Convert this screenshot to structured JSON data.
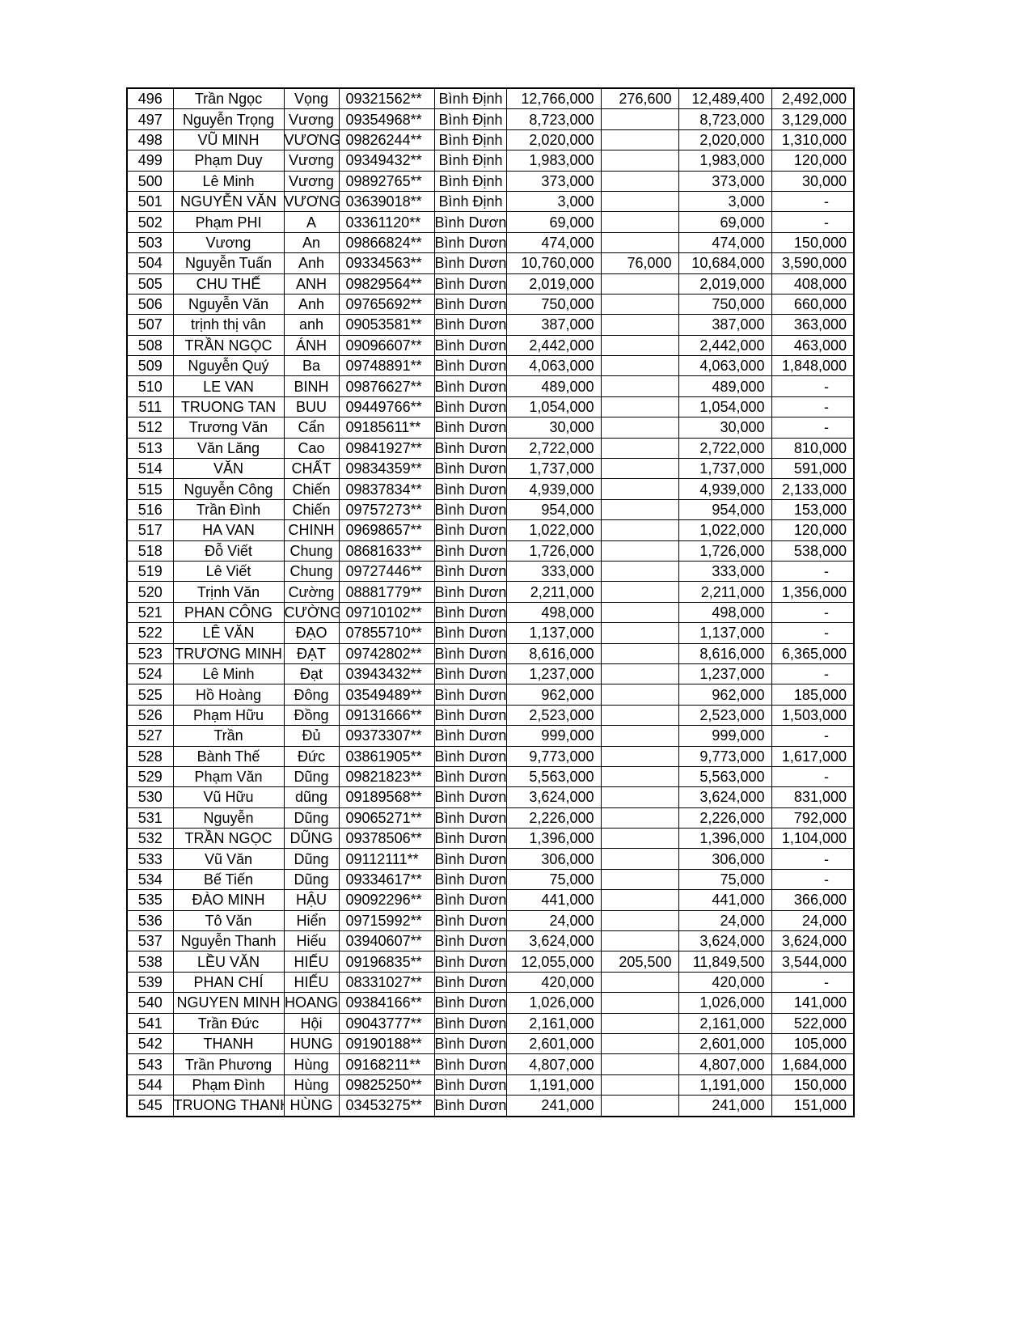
{
  "rows": [
    [
      "496",
      "Trần Ngọc",
      "Vọng",
      "09321562**",
      "Bình Định",
      "12,766,000",
      "276,600",
      "12,489,400",
      "2,492,000"
    ],
    [
      "497",
      "Nguyễn Trọng",
      "Vương",
      "09354968**",
      "Bình Định",
      "8,723,000",
      "",
      "8,723,000",
      "3,129,000"
    ],
    [
      "498",
      "VŨ MINH",
      "VƯƠNG",
      "09826244**",
      "Bình Định",
      "2,020,000",
      "",
      "2,020,000",
      "1,310,000"
    ],
    [
      "499",
      "Phạm Duy",
      "Vương",
      "09349432**",
      "Bình Định",
      "1,983,000",
      "",
      "1,983,000",
      "120,000"
    ],
    [
      "500",
      "Lê Minh",
      "Vương",
      "09892765**",
      "Bình Định",
      "373,000",
      "",
      "373,000",
      "30,000"
    ],
    [
      "501",
      "NGUYỄN VĂN",
      "VƯƠNG",
      "03639018**",
      "Bình Định",
      "3,000",
      "",
      "3,000",
      "-"
    ],
    [
      "502",
      "Phạm  PHI",
      "A",
      "03361120**",
      "Bình Dương",
      "69,000",
      "",
      "69,000",
      "-"
    ],
    [
      "503",
      "Vương",
      "An",
      "09866824**",
      "Bình Dương",
      "474,000",
      "",
      "474,000",
      "150,000"
    ],
    [
      "504",
      "Nguyễn Tuấn",
      "Anh",
      "09334563**",
      "Bình Dương",
      "10,760,000",
      "76,000",
      "10,684,000",
      "3,590,000"
    ],
    [
      "505",
      "CHU THẾ",
      "ANH",
      "09829564**",
      "Bình Dương",
      "2,019,000",
      "",
      "2,019,000",
      "408,000"
    ],
    [
      "506",
      "Nguyễn Văn",
      "Anh",
      "09765692**",
      "Bình Dương",
      "750,000",
      "",
      "750,000",
      "660,000"
    ],
    [
      "507",
      "trịnh thị vân",
      "anh",
      "09053581**",
      "Bình Dương",
      "387,000",
      "",
      "387,000",
      "363,000"
    ],
    [
      "508",
      "TRẦN NGỌC",
      "ÁNH",
      "09096607**",
      "Bình Dương",
      "2,442,000",
      "",
      "2,442,000",
      "463,000"
    ],
    [
      "509",
      "Nguyễn Quý",
      "Ba",
      "09748891**",
      "Bình Dương",
      "4,063,000",
      "",
      "4,063,000",
      "1,848,000"
    ],
    [
      "510",
      "LE VAN",
      "BINH",
      "09876627**",
      "Bình Dương",
      "489,000",
      "",
      "489,000",
      "-"
    ],
    [
      "511",
      "TRUONG TAN",
      "BUU",
      "09449766**",
      "Bình Dương",
      "1,054,000",
      "",
      "1,054,000",
      "-"
    ],
    [
      "512",
      "Trương Văn",
      "Cẩn",
      "09185611**",
      "Bình Dương",
      "30,000",
      "",
      "30,000",
      "-"
    ],
    [
      "513",
      "Văn Lăng",
      "Cao",
      "09841927**",
      "Bình Dương",
      "2,722,000",
      "",
      "2,722,000",
      "810,000"
    ],
    [
      "514",
      "VĂN",
      "CHẤT",
      "09834359**",
      "Bình Dương",
      "1,737,000",
      "",
      "1,737,000",
      "591,000"
    ],
    [
      "515",
      "Nguyễn Công",
      "Chiến",
      "09837834**",
      "Bình Dương",
      "4,939,000",
      "",
      "4,939,000",
      "2,133,000"
    ],
    [
      "516",
      "Trần  Đình",
      "Chiến",
      "09757273**",
      "Bình Dương",
      "954,000",
      "",
      "954,000",
      "153,000"
    ],
    [
      "517",
      "HA VAN",
      "CHINH",
      "09698657**",
      "Bình Dương",
      "1,022,000",
      "",
      "1,022,000",
      "120,000"
    ],
    [
      "518",
      "Đỗ Viết",
      "Chung",
      "08681633**",
      "Bình Dương",
      "1,726,000",
      "",
      "1,726,000",
      "538,000"
    ],
    [
      "519",
      "Lê Viết",
      "Chung",
      "09727446**",
      "Bình Dương",
      "333,000",
      "",
      "333,000",
      "-"
    ],
    [
      "520",
      "Trịnh Văn",
      "Cường",
      "08881779**",
      "Bình Dương",
      "2,211,000",
      "",
      "2,211,000",
      "1,356,000"
    ],
    [
      "521",
      "PHAN CÔNG",
      "CƯỜNG",
      "09710102**",
      "Bình Dương",
      "498,000",
      "",
      "498,000",
      "-"
    ],
    [
      "522",
      "LÊ VĂN",
      "ĐẠO",
      "07855710**",
      "Bình Dương",
      "1,137,000",
      "",
      "1,137,000",
      "-"
    ],
    [
      "523",
      "TRƯƠNG MINH",
      "ĐẠT",
      "09742802**",
      "Bình Dương",
      "8,616,000",
      "",
      "8,616,000",
      "6,365,000"
    ],
    [
      "524",
      "Lê Minh",
      "Đạt",
      "03943432**",
      "Bình Dương",
      "1,237,000",
      "",
      "1,237,000",
      "-"
    ],
    [
      "525",
      "Hồ Hoàng",
      "Đông",
      "03549489**",
      "Bình Dương",
      "962,000",
      "",
      "962,000",
      "185,000"
    ],
    [
      "526",
      "Phạm Hữu",
      "Đồng",
      "09131666**",
      "Bình Dương",
      "2,523,000",
      "",
      "2,523,000",
      "1,503,000"
    ],
    [
      "527",
      "Trần",
      "Đủ",
      "09373307**",
      "Bình Dương",
      "999,000",
      "",
      "999,000",
      "-"
    ],
    [
      "528",
      "Bành Thế",
      "Đức",
      "03861905**",
      "Bình Dương",
      "9,773,000",
      "",
      "9,773,000",
      "1,617,000"
    ],
    [
      "529",
      "Phạm Văn",
      "Dũng",
      "09821823**",
      "Bình Dương",
      "5,563,000",
      "",
      "5,563,000",
      "-"
    ],
    [
      "530",
      "Vũ Hữu",
      "dũng",
      "09189568**",
      "Bình Dương",
      "3,624,000",
      "",
      "3,624,000",
      "831,000"
    ],
    [
      "531",
      "Nguyễn",
      "Dũng",
      "09065271**",
      "Bình Dương",
      "2,226,000",
      "",
      "2,226,000",
      "792,000"
    ],
    [
      "532",
      "TRẦN NGỌC",
      "DŨNG",
      "09378506**",
      "Bình Dương",
      "1,396,000",
      "",
      "1,396,000",
      "1,104,000"
    ],
    [
      "533",
      "Vũ Văn",
      "Dũng",
      "09112111**",
      "Bình Dương",
      "306,000",
      "",
      "306,000",
      "-"
    ],
    [
      "534",
      "Bế Tiến",
      "Dũng",
      "09334617**",
      "Bình Dương",
      "75,000",
      "",
      "75,000",
      "-"
    ],
    [
      "535",
      "ĐÀO MINH",
      "HẬU",
      "09092296**",
      "Bình Dương",
      "441,000",
      "",
      "441,000",
      "366,000"
    ],
    [
      "536",
      "Tô Văn",
      "Hiển",
      "09715992**",
      "Bình Dương",
      "24,000",
      "",
      "24,000",
      "24,000"
    ],
    [
      "537",
      "Nguyễn Thanh",
      "Hiếu",
      "03940607**",
      "Bình Dương",
      "3,624,000",
      "",
      "3,624,000",
      "3,624,000"
    ],
    [
      "538",
      "LỀU VĂN",
      "HIẾU",
      "09196835**",
      "Bình Dương",
      "12,055,000",
      "205,500",
      "11,849,500",
      "3,544,000"
    ],
    [
      "539",
      "PHAN CHÍ",
      "HIẾU",
      "08331027**",
      "Bình Dương",
      "420,000",
      "",
      "420,000",
      "-"
    ],
    [
      "540",
      "NGUYEN MINH",
      "HOANG",
      "09384166**",
      "Bình Dương",
      "1,026,000",
      "",
      "1,026,000",
      "141,000"
    ],
    [
      "541",
      "Trần Đức",
      "Hội",
      "09043777**",
      "Bình Dương",
      "2,161,000",
      "",
      "2,161,000",
      "522,000"
    ],
    [
      "542",
      "THANH",
      "HUNG",
      "09190188**",
      "Bình Dương",
      "2,601,000",
      "",
      "2,601,000",
      "105,000"
    ],
    [
      "543",
      "Trần Phương",
      "Hùng",
      "09168211**",
      "Bình Dương",
      "4,807,000",
      "",
      "4,807,000",
      "1,684,000"
    ],
    [
      "544",
      "Phạm Đình",
      "Hùng",
      "09825250**",
      "Bình Dương",
      "1,191,000",
      "",
      "1,191,000",
      "150,000"
    ],
    [
      "545",
      "TRUONG THANH",
      "HÙNG",
      "03453275**",
      "Bình Dương",
      "241,000",
      "",
      "241,000",
      "151,000"
    ]
  ]
}
